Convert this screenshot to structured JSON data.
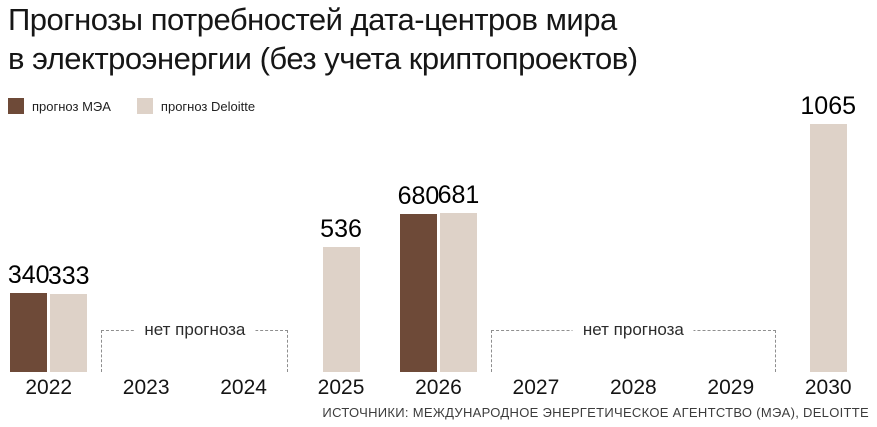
{
  "title": {
    "line1": "Прогнозы потребностей дата-центров мира",
    "line2": "в электроэнергии (без учета криптопроектов)"
  },
  "legend": {
    "items": [
      {
        "label": "прогноз МЭА",
        "color": "#6e4a38"
      },
      {
        "label": "прогноз Deloitte",
        "color": "#ded2c8"
      }
    ]
  },
  "annotations": {
    "no_forecast_label": "нет прогноза"
  },
  "source": "ИСТОЧНИКИ: МЕЖДУНАРОДНОЕ ЭНЕРГЕТИЧЕСКОЕ АГЕНТСТВО (МЭА), DELOITTE",
  "chart_data": {
    "type": "bar",
    "title": "Прогнозы потребностей дата-центров мира в электроэнергии (без учета криптопроектов)",
    "categories": [
      "2022",
      "2023",
      "2024",
      "2025",
      "2026",
      "2027",
      "2028",
      "2029",
      "2030"
    ],
    "series": [
      {
        "name": "прогноз МЭА",
        "color": "#6e4a38",
        "values": [
          340,
          null,
          null,
          null,
          680,
          null,
          null,
          null,
          null
        ]
      },
      {
        "name": "прогноз Deloitte",
        "color": "#ded2c8",
        "values": [
          333,
          null,
          null,
          536,
          681,
          null,
          null,
          null,
          1065
        ]
      }
    ],
    "no_forecast_ranges": [
      {
        "from": "2023",
        "to": "2024"
      },
      {
        "from": "2027",
        "to": "2029"
      }
    ],
    "ylim": [
      0,
      1100
    ],
    "grid": false,
    "legend_position": "top-left",
    "value_labels": true
  }
}
